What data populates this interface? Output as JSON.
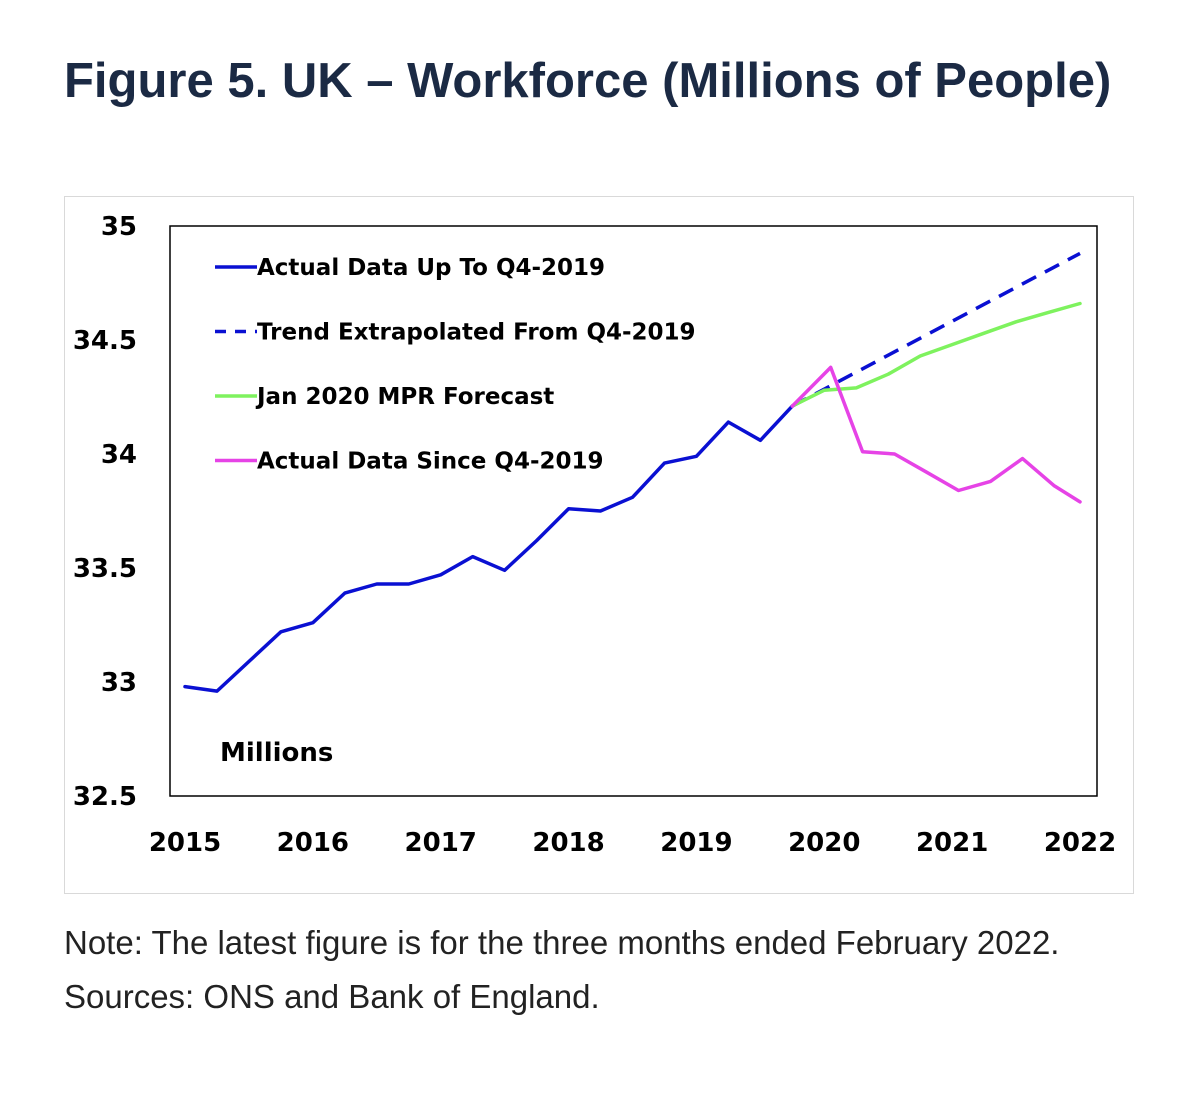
{
  "title": "Figure 5. UK – Workforce (Millions of People)",
  "note": "Note: The latest figure is for the three months ended February 2022. Sources: ONS and Bank of England.",
  "chart_data": {
    "type": "line",
    "title": "Figure 5. UK – Workforce (Millions of People)",
    "xlabel": "",
    "ylabel": "Millions",
    "xlim": [
      2015,
      2022
    ],
    "ylim": [
      32.5,
      35
    ],
    "grid": false,
    "legend_placement": "top-left",
    "x_ticks": [
      "2015",
      "2016",
      "2017",
      "2018",
      "2019",
      "2020",
      "2021",
      "2022"
    ],
    "y_ticks": [
      "32.5",
      "33",
      "33.5",
      "34",
      "34.5",
      "35"
    ],
    "series": [
      {
        "name": "Actual Data Up To Q4-2019",
        "color": "#0a10d2",
        "dash": "solid",
        "points": [
          [
            2015.0,
            32.98
          ],
          [
            2015.25,
            32.96
          ],
          [
            2015.5,
            33.09
          ],
          [
            2015.75,
            33.22
          ],
          [
            2016.0,
            33.26
          ],
          [
            2016.25,
            33.39
          ],
          [
            2016.5,
            33.43
          ],
          [
            2016.75,
            33.43
          ],
          [
            2017.0,
            33.47
          ],
          [
            2017.25,
            33.55
          ],
          [
            2017.5,
            33.49
          ],
          [
            2017.75,
            33.62
          ],
          [
            2018.0,
            33.76
          ],
          [
            2018.25,
            33.75
          ],
          [
            2018.5,
            33.81
          ],
          [
            2018.75,
            33.96
          ],
          [
            2019.0,
            33.99
          ],
          [
            2019.25,
            34.14
          ],
          [
            2019.5,
            34.06
          ],
          [
            2019.75,
            34.21
          ]
        ]
      },
      {
        "name": "Trend Extrapolated From Q4-2019",
        "color": "#0a10d2",
        "dash": "dashed",
        "points": [
          [
            2019.75,
            34.21
          ],
          [
            2022.0,
            34.88
          ]
        ]
      },
      {
        "name": "Jan 2020 MPR Forecast",
        "color": "#7ef25e",
        "dash": "solid",
        "points": [
          [
            2019.75,
            34.21
          ],
          [
            2020.0,
            34.28
          ],
          [
            2020.25,
            34.29
          ],
          [
            2020.5,
            34.35
          ],
          [
            2020.75,
            34.43
          ],
          [
            2021.0,
            34.48
          ],
          [
            2021.25,
            34.53
          ],
          [
            2021.5,
            34.58
          ],
          [
            2021.75,
            34.62
          ],
          [
            2022.0,
            34.66
          ]
        ]
      },
      {
        "name": "Actual Data Since Q4-2019",
        "color": "#e643e6",
        "dash": "solid",
        "points": [
          [
            2019.75,
            34.21
          ],
          [
            2020.05,
            34.38
          ],
          [
            2020.3,
            34.01
          ],
          [
            2020.55,
            34.0
          ],
          [
            2020.8,
            33.92
          ],
          [
            2021.05,
            33.84
          ],
          [
            2021.3,
            33.88
          ],
          [
            2021.55,
            33.98
          ],
          [
            2021.8,
            33.86
          ],
          [
            2022.0,
            33.79
          ]
        ]
      }
    ],
    "annotations": [
      "Millions"
    ]
  }
}
